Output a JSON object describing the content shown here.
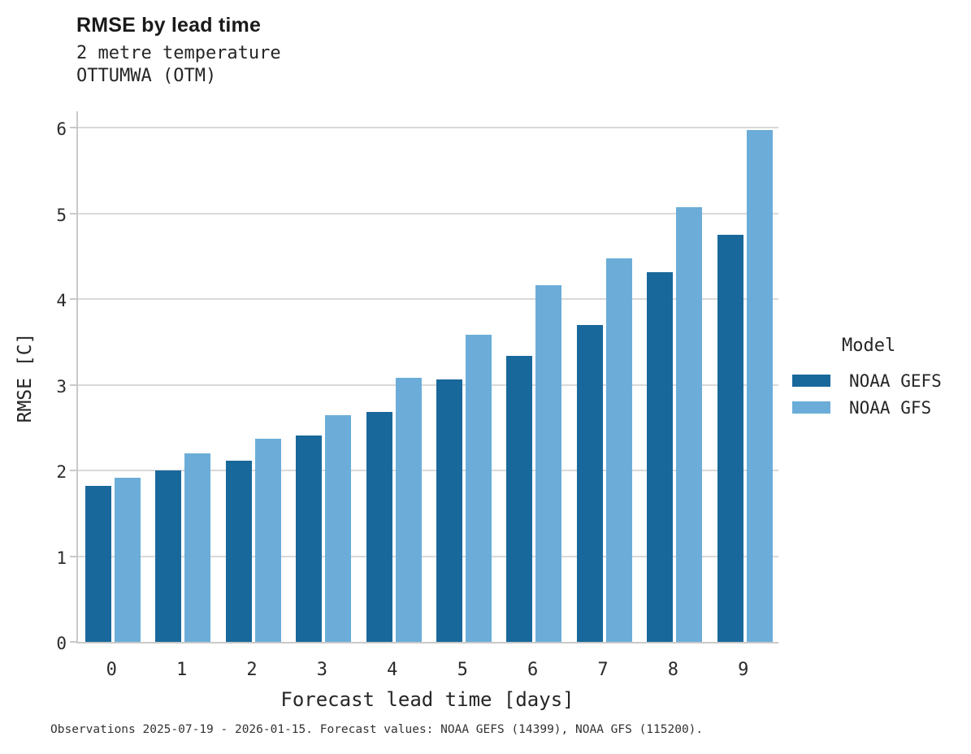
{
  "caption": "Observations 2025-07-19 - 2026-01-15. Forecast values: NOAA GEFS (14399), NOAA GFS (115200).",
  "chart_data": {
    "type": "bar",
    "title": "RMSE by lead time",
    "subtitle_line1": "2 metre temperature",
    "subtitle_line2": "OTTUMWA (OTM)",
    "xlabel": "Forecast lead time [days]",
    "ylabel": "RMSE [C]",
    "legend_title": "Model",
    "legend_position": "right-center",
    "grid": "horizontal",
    "categories": [
      0,
      1,
      2,
      3,
      4,
      5,
      6,
      7,
      8,
      9
    ],
    "yticks": [
      0,
      1,
      2,
      3,
      4,
      5,
      6
    ],
    "ylim": [
      0,
      6.21
    ],
    "series": [
      {
        "name": "NOAA GEFS",
        "color": "#19689b",
        "values": [
          1.82,
          2.0,
          2.11,
          2.41,
          2.68,
          3.06,
          3.34,
          3.7,
          4.31,
          4.75
        ]
      },
      {
        "name": "NOAA GFS",
        "color": "#6badd8",
        "values": [
          1.92,
          2.2,
          2.37,
          2.65,
          3.08,
          3.58,
          4.16,
          4.48,
          5.07,
          5.97
        ]
      }
    ],
    "colors": {
      "axis": "#c9c9c9",
      "gridline": "#d9d9d9",
      "text": "#262626"
    }
  }
}
